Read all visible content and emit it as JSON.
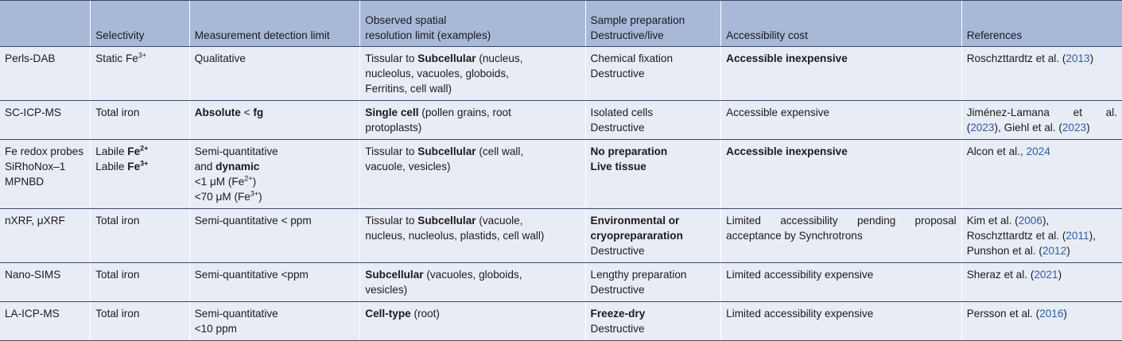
{
  "header": {
    "col0": "",
    "col1": "Selectivity",
    "col2": "Measurement detection limit",
    "col3_line1": "Observed spatial",
    "col3_line2": "resolution limit (examples)",
    "col4_line1": "Sample preparation",
    "col4_line2": "Destructive/live",
    "col5": "Accessibility cost",
    "col6": "References"
  },
  "rows": [
    {
      "method": "Perls-DAB",
      "selectivity_pre": "Static Fe",
      "selectivity_sup": "3+",
      "detection": "Qualitative",
      "resolution_pre": "Tissular to ",
      "resolution_bold": "Subcellular",
      "resolution_l1_rest": " (nucleus,",
      "resolution_l2": "nucleolus, vacuoles, globoids,",
      "resolution_l3": "Ferritins, cell wall)",
      "prep_l1": "Chemical fixation",
      "prep_l2": "Destructive",
      "access": "Accessible inexpensive",
      "ref_author": "Roschzttardtz et al. (",
      "ref_year": "2013",
      "ref_close": ")"
    },
    {
      "method": "SC-ICP-MS",
      "selectivity": "Total iron",
      "detection_bold1": "Absolute",
      "detection_mid": " < ",
      "detection_bold2": "fg",
      "resolution_bold": "Single cell",
      "resolution_l1_rest": " (pollen grains, root",
      "resolution_l2": "protoplasts)",
      "prep_l1": "Isolated cells",
      "prep_l2": "Destructive",
      "access": "Accessible expensive",
      "ref_l1": "Jiménez-Lamana et al.",
      "ref_l2_open": "(",
      "ref_year1": "2023",
      "ref_l2_mid": "), Giehl et al. (",
      "ref_year2": "2023",
      "ref_l2_close": ")"
    },
    {
      "method_l1": "Fe redox probes",
      "method_l2": "SiRhoNox–1",
      "method_l3": "MPNBD",
      "sel_l1_pre": "Labile ",
      "sel_l1_bold": "Fe",
      "sel_l1_sup": "2+",
      "sel_l2_pre": "Labile ",
      "sel_l2_bold": "Fe",
      "sel_l2_sup": "3+",
      "det_l1": "Semi-quantitative",
      "det_l2_pre": "and ",
      "det_l2_bold": "dynamic",
      "det_l3_pre": "<1 μM (Fe",
      "det_l3_sup": "2+",
      "det_l3_close": ")",
      "det_l4_pre": "<70 μM (Fe",
      "det_l4_sup": "3+",
      "det_l4_close": ")",
      "resolution_pre": "Tissular to ",
      "resolution_bold": "Subcellular",
      "resolution_l1_rest": " (cell wall,",
      "resolution_l2": "vacuole, vesicles)",
      "prep_l1": "No preparation",
      "prep_l2": "Live tissue",
      "access": "Accessible inexpensive",
      "ref_author": "Alcon et al., ",
      "ref_year": "2024"
    },
    {
      "method": "nXRF, μXRF",
      "selectivity": "Total iron",
      "detection": "Semi-quantitative < ppm",
      "resolution_pre": "Tissular to ",
      "resolution_bold": "Subcellular",
      "resolution_l1_rest": " (vacuole,",
      "resolution_l2": "nucleus, nucleolus, plastids, cell wall)",
      "prep_l1": "Environmental or",
      "prep_l2": "cryoprepararation",
      "prep_l3": "Destructive",
      "access_l1": "Limited accessibility pending proposal",
      "access_l2": "acceptance by Synchrotrons",
      "ref1_author": "Kim et al. (",
      "ref1_year": "2006",
      "ref1_close": "),",
      "ref2_author": "Roschzttardtz et al. (",
      "ref2_year": "2011",
      "ref2_close": "),",
      "ref3_author": "Punshon et al. (",
      "ref3_year": "2012",
      "ref3_close": ")"
    },
    {
      "method": "Nano-SIMS",
      "selectivity": "Total iron",
      "detection": "Semi-quantitative <ppm",
      "resolution_bold": "Subcellular",
      "resolution_l1_rest": " (vacuoles, globoids,",
      "resolution_l2": "vesicles)",
      "prep_l1": "Lengthy preparation",
      "prep_l2": "Destructive",
      "access": "Limited accessibility expensive",
      "ref_author": "Sheraz et al. (",
      "ref_year": "2021",
      "ref_close": ")"
    },
    {
      "method": "LA-ICP-MS",
      "selectivity": "Total iron",
      "det_l1": "Semi-quantitative",
      "det_l2": "<10 ppm",
      "resolution_bold": "Cell-type",
      "resolution_l1_rest": " (root)",
      "prep_l1": "Freeze-dry",
      "prep_l2": "Destructive",
      "access": "Limited accessibility expensive",
      "ref_author": "Persson et al. (",
      "ref_year": "2016",
      "ref_close": ")"
    }
  ]
}
